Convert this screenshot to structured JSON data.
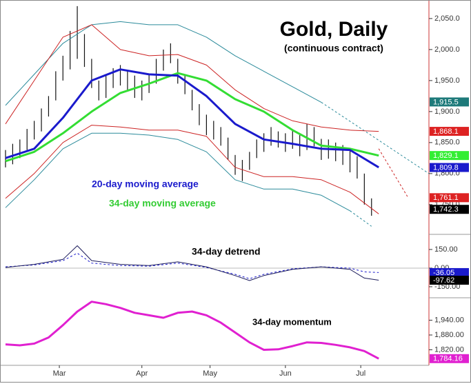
{
  "chart_data": [
    {
      "type": "ohlc",
      "title": "Gold, Daily",
      "subtitle": "(continuous contract)",
      "xlim": [
        0,
        118
      ],
      "ylim": [
        1702,
        2071
      ],
      "yticks": [
        {
          "value": 2050,
          "label": "2,050.0"
        },
        {
          "value": 2000,
          "label": "2,000.0"
        },
        {
          "value": 1950,
          "label": "1,950.0"
        },
        {
          "value": 1900,
          "label": "1,900.0"
        },
        {
          "value": 1850,
          "label": "1,850.0"
        },
        {
          "value": 1800,
          "label": "1,800.0"
        },
        {
          "value": 1750,
          "label": "1,750.0"
        }
      ],
      "bars": {
        "color": "#111111",
        "x": [
          0,
          2,
          4,
          6,
          8,
          10,
          12,
          14,
          16,
          18,
          20,
          22,
          24,
          26,
          28,
          30,
          32,
          34,
          36,
          38,
          40,
          42,
          44,
          46,
          48,
          50,
          52,
          54,
          56,
          58,
          60,
          62,
          64,
          66,
          68,
          70,
          72,
          74,
          76,
          78,
          80,
          82,
          84,
          86,
          88,
          90,
          92,
          94,
          96,
          98,
          100,
          102
        ],
        "high": [
          1838,
          1848,
          1855,
          1872,
          1885,
          1905,
          1925,
          1965,
          1990,
          2030,
          2070,
          2025,
          1985,
          1950,
          1958,
          1970,
          1975,
          1965,
          1958,
          1950,
          1960,
          1985,
          2000,
          2010,
          1985,
          1960,
          1935,
          1912,
          1895,
          1885,
          1875,
          1858,
          1830,
          1822,
          1835,
          1855,
          1865,
          1875,
          1868,
          1865,
          1870,
          1862,
          1880,
          1875,
          1856,
          1855,
          1850,
          1846,
          1838,
          1828,
          1800,
          1760
        ],
        "low": [
          1810,
          1815,
          1825,
          1838,
          1855,
          1868,
          1892,
          1918,
          1950,
          1968,
          1985,
          1972,
          1938,
          1918,
          1922,
          1938,
          1942,
          1935,
          1922,
          1918,
          1930,
          1945,
          1966,
          1978,
          1945,
          1928,
          1902,
          1878,
          1862,
          1855,
          1845,
          1822,
          1798,
          1788,
          1806,
          1825,
          1835,
          1845,
          1842,
          1835,
          1840,
          1828,
          1838,
          1844,
          1822,
          1824,
          1820,
          1814,
          1802,
          1792,
          1750,
          1732
        ]
      },
      "series": [
        {
          "color": "#2a8a9a",
          "x": [
            0,
            8,
            16,
            24,
            32,
            40,
            48,
            56,
            64,
            72,
            80,
            88
          ],
          "values": [
            1910,
            1960,
            2010,
            2040,
            2045,
            2040,
            2040,
            2020,
            1990,
            1965,
            1940,
            1915
          ]
        },
        {
          "color": "#2a8a9a",
          "dashed": true,
          "x": [
            88,
            118
          ],
          "values": [
            1915,
            1800
          ]
        },
        {
          "color": "#cc2222",
          "x": [
            0,
            8,
            16,
            24,
            32,
            40,
            48,
            56,
            64,
            72,
            80,
            88,
            96,
            104
          ],
          "values": [
            1880,
            1950,
            2020,
            2040,
            2000,
            1990,
            1992,
            1975,
            1935,
            1905,
            1885,
            1875,
            1870,
            1868
          ]
        },
        {
          "color": "#cc2222",
          "dashed": true,
          "x": [
            104,
            112
          ],
          "values": [
            1840,
            1763
          ]
        },
        {
          "color": "#cc2222",
          "x": [
            0,
            8,
            16,
            24,
            32,
            40,
            48,
            56,
            64,
            72,
            80,
            88,
            96,
            104
          ],
          "values": [
            1760,
            1800,
            1850,
            1878,
            1875,
            1870,
            1870,
            1860,
            1810,
            1795,
            1795,
            1790,
            1770,
            1735
          ]
        },
        {
          "color": "#2a8a9a",
          "x": [
            0,
            8,
            16,
            24,
            32,
            40,
            48,
            56,
            64,
            72,
            80,
            88,
            96
          ],
          "values": [
            1745,
            1790,
            1840,
            1865,
            1865,
            1862,
            1855,
            1835,
            1790,
            1775,
            1775,
            1765,
            1740
          ]
        },
        {
          "color": "#2a8a9a",
          "dashed": true,
          "x": [
            96,
            102
          ],
          "values": [
            1740,
            1715
          ]
        },
        {
          "name": "34-day moving average",
          "color": "#33dd33",
          "width": 3,
          "x": [
            0,
            8,
            16,
            24,
            32,
            40,
            48,
            56,
            64,
            72,
            80,
            88,
            96,
            104
          ],
          "values": [
            1820,
            1835,
            1865,
            1900,
            1930,
            1945,
            1962,
            1950,
            1920,
            1900,
            1870,
            1845,
            1840,
            1829
          ]
        },
        {
          "name": "20-day moving average",
          "color": "#1a1acc",
          "width": 3,
          "x": [
            0,
            8,
            16,
            24,
            32,
            40,
            48,
            56,
            64,
            72,
            80,
            88,
            96,
            104
          ],
          "values": [
            1825,
            1840,
            1890,
            1950,
            1968,
            1960,
            1958,
            1925,
            1880,
            1855,
            1848,
            1840,
            1838,
            1810
          ]
        }
      ],
      "flags": [
        {
          "value": 1915.5,
          "label": "1,915.5",
          "color": "#1e7a7a"
        },
        {
          "value": 1868.1,
          "label": "1,868.1",
          "color": "#dd2222"
        },
        {
          "value": 1829.1,
          "label": "1,829.1",
          "color": "#33ee33"
        },
        {
          "value": 1809.8,
          "label": "1,809.8",
          "color": "#1a1acc"
        },
        {
          "value": 1761.1,
          "label": "1,761.1",
          "color": "#dd2222"
        },
        {
          "value": 1742.3,
          "label": "1,742.3",
          "color": "#000000"
        }
      ]
    },
    {
      "type": "line",
      "annotation": "34-day detrend",
      "xlim": [
        0,
        118
      ],
      "ylim": [
        -239,
        244
      ],
      "yticks": [
        {
          "value": 150,
          "label": "150.00"
        },
        {
          "value": 0,
          "label": "0.00"
        },
        {
          "value": -150,
          "label": "-150.00"
        }
      ],
      "series": [
        {
          "color": "#1a1acc",
          "dashed": true,
          "x": [
            0,
            8,
            16,
            20,
            24,
            32,
            40,
            48,
            56,
            64,
            68,
            72,
            80,
            88,
            96,
            100,
            104
          ],
          "values": [
            10,
            25,
            60,
            120,
            40,
            20,
            15,
            40,
            5,
            -50,
            -85,
            -50,
            -5,
            10,
            0,
            -30,
            -36.05
          ]
        },
        {
          "color": "#1a1a5a",
          "x": [
            0,
            8,
            16,
            20,
            24,
            32,
            40,
            48,
            56,
            64,
            68,
            72,
            80,
            88,
            96,
            100,
            104
          ],
          "values": [
            5,
            30,
            70,
            180,
            60,
            30,
            20,
            50,
            10,
            -60,
            -100,
            -60,
            -10,
            10,
            -10,
            -80,
            -97.62
          ]
        }
      ],
      "flags": [
        {
          "value": -36.05,
          "color": "#1a1acc"
        },
        {
          "value": -97.62,
          "color": "#000000"
        }
      ]
    },
    {
      "type": "line",
      "annotation": "34-day momentum",
      "xlim": [
        0,
        118
      ],
      "ylim": [
        1757,
        2031
      ],
      "yticks": [
        {
          "value": 1940,
          "label": "1,940.00"
        },
        {
          "value": 1880,
          "label": "1,880.00"
        },
        {
          "value": 1820,
          "label": "1,820.00"
        }
      ],
      "xticks": [
        {
          "value": 15,
          "label": "Mar"
        },
        {
          "value": 38,
          "label": "Apr"
        },
        {
          "value": 57,
          "label": "May"
        },
        {
          "value": 78,
          "label": "Jun"
        },
        {
          "value": 99,
          "label": "Jul"
        }
      ],
      "series": [
        {
          "color": "#e020d0",
          "width": 3,
          "x": [
            0,
            4,
            8,
            12,
            16,
            20,
            24,
            28,
            32,
            36,
            40,
            44,
            48,
            52,
            56,
            60,
            64,
            68,
            72,
            76,
            80,
            84,
            88,
            92,
            96,
            100,
            104
          ],
          "values": [
            1842,
            1838,
            1845,
            1870,
            1920,
            1975,
            2015,
            2005,
            1990,
            1970,
            1960,
            1950,
            1970,
            1975,
            1960,
            1930,
            1890,
            1850,
            1820,
            1822,
            1835,
            1850,
            1848,
            1840,
            1830,
            1815,
            1784
          ]
        }
      ],
      "flags": [
        {
          "value": 1784.16,
          "label": "1,784.16",
          "color": "#e020d0"
        }
      ]
    }
  ]
}
